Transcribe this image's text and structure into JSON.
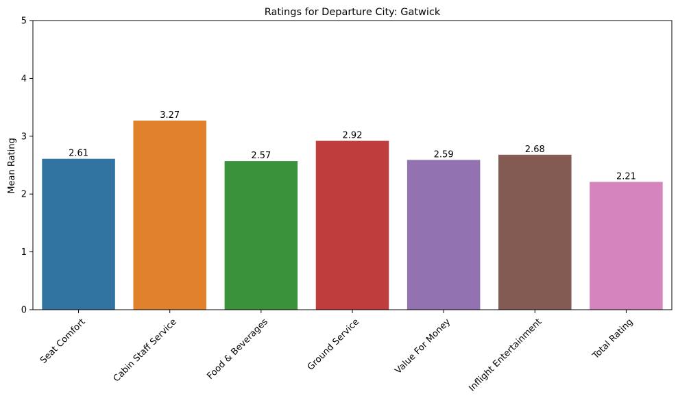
{
  "chart_data": {
    "type": "bar",
    "title": "Ratings for Departure City: Gatwick",
    "xlabel": "",
    "ylabel": "Mean Rating",
    "ylim": [
      0,
      5
    ],
    "yticks": [
      0,
      1,
      2,
      3,
      4,
      5
    ],
    "grid": false,
    "legend": "none",
    "categories": [
      "Seat Comfort",
      "Cabin Staff Service",
      "Food & Beverages",
      "Ground Service",
      "Value For Money",
      "Inflight Entertainment",
      "Total Rating"
    ],
    "values": [
      2.61,
      3.27,
      2.57,
      2.92,
      2.59,
      2.68,
      2.21
    ],
    "data_labels": [
      "2.61",
      "3.27",
      "2.57",
      "2.92",
      "2.59",
      "2.68",
      "2.21"
    ],
    "colors": [
      "#3274a1",
      "#e1812c",
      "#3a923a",
      "#c03d3e",
      "#9372b2",
      "#845b53",
      "#d684bd"
    ]
  }
}
